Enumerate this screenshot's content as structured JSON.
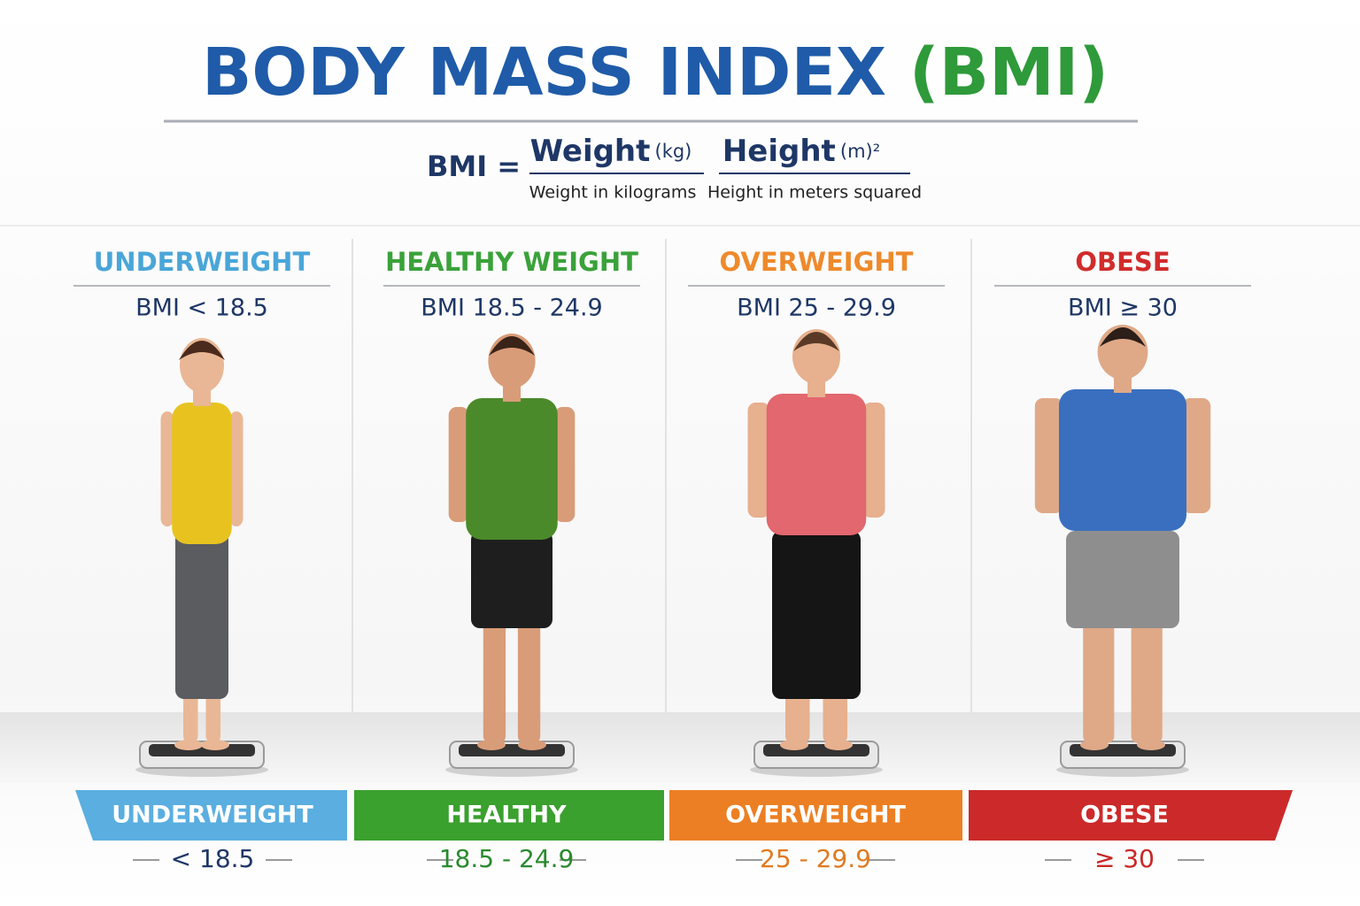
{
  "title": {
    "main": "BODY MASS INDEX",
    "accent": "(BMI)"
  },
  "formula": {
    "lhs": "BMI =",
    "numerator": "Weight",
    "numerator_unit": "(kg)",
    "numerator_note": "Weight in kilograms",
    "denominator": "Height",
    "denominator_unit": "(m)²",
    "denominator_note": "Height in meters squared"
  },
  "categories": [
    {
      "label": "UNDERWEIGHT",
      "range": "BMI < 18.5"
    },
    {
      "label": "HEALTHY WEIGHT",
      "range": "BMI 18.5 - 24.9"
    },
    {
      "label": "OVERWEIGHT",
      "range": "BMI 25 - 29.9"
    },
    {
      "label": "OBESE",
      "range": "BMI ≥ 30"
    }
  ],
  "scale": [
    {
      "label": "UNDERWEIGHT",
      "range": "< 18.5"
    },
    {
      "label": "HEALTHY",
      "range": "18.5 - 24.9"
    },
    {
      "label": "OVERWEIGHT",
      "range": "25 - 29.9"
    },
    {
      "label": "OBESE",
      "range": "≥ 30"
    }
  ]
}
